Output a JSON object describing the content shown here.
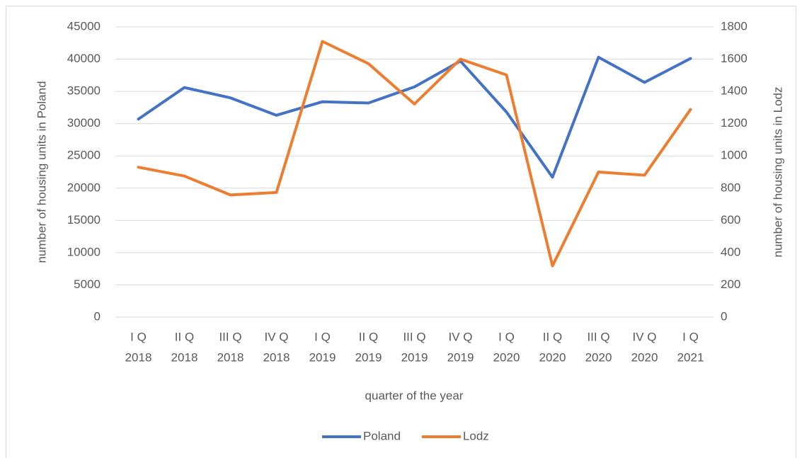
{
  "chart_data": {
    "type": "line",
    "x_label": "quarter of the year",
    "y_label": "number of housing units in Poland",
    "y2_label": "number of housing units in Lodz",
    "categories": [
      [
        "I Q",
        "2018"
      ],
      [
        "II Q",
        "2018"
      ],
      [
        "III Q",
        "2018"
      ],
      [
        "IV Q",
        "2018"
      ],
      [
        "I Q",
        "2019"
      ],
      [
        "II Q",
        "2019"
      ],
      [
        "III Q",
        "2019"
      ],
      [
        "IV Q",
        "2019"
      ],
      [
        "I Q",
        "2020"
      ],
      [
        "II Q",
        "2020"
      ],
      [
        "III Q",
        "2020"
      ],
      [
        "IV Q",
        "2020"
      ],
      [
        "I Q",
        "2021"
      ]
    ],
    "series": [
      {
        "name": "Poland",
        "color": "#4472c4",
        "values": [
          30700,
          35600,
          34000,
          31300,
          33400,
          33200,
          35700,
          39700,
          31800,
          21700,
          40300,
          36400,
          40100
        ]
      },
      {
        "name": "Lodz",
        "color": "#ed7d31",
        "axis": "y2",
        "values": [
          930,
          875,
          758,
          773,
          1710,
          1572,
          1322,
          1600,
          1502,
          318,
          900,
          880,
          1288
        ]
      }
    ],
    "ylim": [
      0,
      45000
    ],
    "yticks": [
      0,
      5000,
      10000,
      15000,
      20000,
      25000,
      30000,
      35000,
      40000,
      45000
    ],
    "y2lim": [
      0,
      1800
    ],
    "y2ticks": [
      0,
      200,
      400,
      600,
      800,
      1000,
      1200,
      1400,
      1600,
      1800
    ],
    "grid": true,
    "legend": "bottom"
  }
}
